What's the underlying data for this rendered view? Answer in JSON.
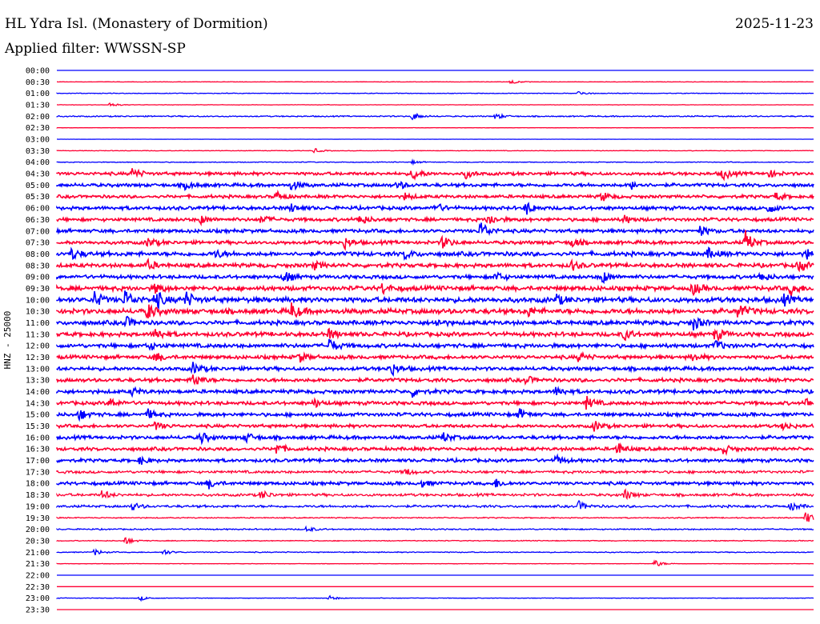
{
  "chart_data": {
    "type": "line",
    "title": "HL Ydra Isl. (Monastery of Dormition)",
    "subtitle": "Applied filter: WWSSN-SP",
    "date": "2025-11-23",
    "ylabel": "HNZ - 25000",
    "colors": {
      "even_row": "#0000ff",
      "odd_row": "#ff0033"
    },
    "rows": [
      "00:00",
      "00:30",
      "01:00",
      "01:30",
      "02:00",
      "02:30",
      "03:00",
      "03:30",
      "04:00",
      "04:30",
      "05:00",
      "05:30",
      "06:00",
      "06:30",
      "07:00",
      "07:30",
      "08:00",
      "08:30",
      "09:00",
      "09:30",
      "10:00",
      "10:30",
      "11:00",
      "11:30",
      "12:00",
      "12:30",
      "13:00",
      "13:30",
      "14:00",
      "14:30",
      "15:00",
      "15:30",
      "16:00",
      "16:30",
      "17:00",
      "17:30",
      "18:00",
      "18:30",
      "19:00",
      "19:30",
      "20:00",
      "20:30",
      "21:00",
      "21:30",
      "22:00",
      "22:30",
      "23:00",
      "23:30"
    ],
    "noise_level": [
      0,
      0.3,
      0.5,
      0.3,
      0.9,
      0.2,
      0.1,
      0.4,
      0.6,
      2.2,
      2.4,
      2.2,
      2.5,
      2.4,
      2.5,
      2.5,
      3.0,
      2.8,
      2.6,
      3.2,
      3.6,
      3.6,
      3.0,
      3.0,
      2.8,
      2.6,
      2.6,
      2.6,
      2.6,
      2.5,
      2.5,
      2.3,
      2.5,
      2.4,
      2.3,
      2.0,
      2.3,
      2.0,
      1.8,
      0.8,
      1.0,
      0.6,
      0.7,
      0.3,
      0,
      0,
      0.4,
      0
    ],
    "events": [
      [],
      [
        [
          0.6,
          3
        ]
      ],
      [
        [
          0.69,
          3
        ]
      ],
      [
        [
          0.07,
          3
        ]
      ],
      [
        [
          0.47,
          5
        ],
        [
          0.58,
          4
        ]
      ],
      [],
      [],
      [
        [
          0.34,
          3
        ]
      ],
      [
        [
          0.47,
          2
        ]
      ],
      [
        [
          0.1,
          7
        ],
        [
          0.47,
          8
        ],
        [
          0.54,
          5
        ],
        [
          0.88,
          7
        ],
        [
          0.94,
          5
        ]
      ],
      [
        [
          0.17,
          5
        ],
        [
          0.31,
          6
        ],
        [
          0.45,
          5
        ],
        [
          0.76,
          5
        ]
      ],
      [
        [
          0.29,
          6
        ],
        [
          0.46,
          4
        ],
        [
          0.72,
          6
        ],
        [
          0.95,
          5
        ]
      ],
      [
        [
          0.31,
          5
        ],
        [
          0.5,
          6
        ],
        [
          0.62,
          8
        ],
        [
          0.94,
          6
        ]
      ],
      [
        [
          0.19,
          5
        ],
        [
          0.27,
          5
        ],
        [
          0.4,
          7
        ],
        [
          0.57,
          8
        ],
        [
          0.75,
          5
        ]
      ],
      [
        [
          0.56,
          12
        ],
        [
          0.85,
          6
        ]
      ],
      [
        [
          0.12,
          6
        ],
        [
          0.38,
          7
        ],
        [
          0.51,
          8
        ],
        [
          0.68,
          6
        ],
        [
          0.91,
          14
        ]
      ],
      [
        [
          0.02,
          7
        ],
        [
          0.21,
          5
        ],
        [
          0.46,
          6
        ],
        [
          0.86,
          6
        ],
        [
          0.99,
          6
        ]
      ],
      [
        [
          0.12,
          6
        ],
        [
          0.34,
          5
        ],
        [
          0.68,
          6
        ],
        [
          0.98,
          7
        ]
      ],
      [
        [
          0.3,
          8
        ],
        [
          0.58,
          6
        ],
        [
          0.72,
          8
        ],
        [
          0.93,
          6
        ]
      ],
      [
        [
          0.13,
          6
        ],
        [
          0.43,
          6
        ],
        [
          0.84,
          8
        ],
        [
          0.97,
          8
        ]
      ],
      [
        [
          0.05,
          10
        ],
        [
          0.09,
          12
        ],
        [
          0.13,
          12
        ],
        [
          0.17,
          10
        ],
        [
          0.66,
          6
        ],
        [
          0.96,
          6
        ]
      ],
      [
        [
          0.12,
          10
        ],
        [
          0.31,
          10
        ],
        [
          0.62,
          7
        ],
        [
          0.9,
          10
        ]
      ],
      [
        [
          0.09,
          8
        ],
        [
          0.5,
          5
        ],
        [
          0.84,
          10
        ]
      ],
      [
        [
          0.13,
          8
        ],
        [
          0.36,
          6
        ],
        [
          0.75,
          7
        ],
        [
          0.87,
          8
        ]
      ],
      [
        [
          0.12,
          6
        ],
        [
          0.36,
          9
        ],
        [
          0.87,
          7
        ]
      ],
      [
        [
          0.13,
          6
        ],
        [
          0.32,
          6
        ],
        [
          0.69,
          6
        ],
        [
          0.84,
          5
        ]
      ],
      [
        [
          0.18,
          7
        ],
        [
          0.44,
          10
        ]
      ],
      [
        [
          0.18,
          9
        ],
        [
          0.62,
          5
        ]
      ],
      [
        [
          0.1,
          5
        ],
        [
          0.47,
          6
        ],
        [
          0.66,
          6
        ]
      ],
      [
        [
          0.07,
          6
        ],
        [
          0.34,
          5
        ],
        [
          0.7,
          8
        ],
        [
          0.99,
          6
        ]
      ],
      [
        [
          0.03,
          7
        ],
        [
          0.12,
          6
        ],
        [
          0.61,
          7
        ]
      ],
      [
        [
          0.13,
          5
        ],
        [
          0.71,
          6
        ],
        [
          0.96,
          5
        ]
      ],
      [
        [
          0.19,
          7
        ],
        [
          0.25,
          6
        ],
        [
          0.51,
          6
        ]
      ],
      [
        [
          0.29,
          7
        ],
        [
          0.74,
          8
        ],
        [
          0.88,
          6
        ]
      ],
      [
        [
          0.11,
          5
        ],
        [
          0.66,
          6
        ]
      ],
      [
        [
          0.46,
          5
        ]
      ],
      [
        [
          0.2,
          6
        ],
        [
          0.48,
          5
        ],
        [
          0.58,
          5
        ]
      ],
      [
        [
          0.06,
          6
        ],
        [
          0.27,
          6
        ],
        [
          0.75,
          7
        ]
      ],
      [
        [
          0.1,
          5
        ],
        [
          0.69,
          6
        ],
        [
          0.97,
          6
        ]
      ],
      [
        [
          0.99,
          8
        ]
      ],
      [
        [
          0.33,
          4
        ]
      ],
      [
        [
          0.09,
          5
        ]
      ],
      [
        [
          0.05,
          4
        ],
        [
          0.14,
          4
        ]
      ],
      [
        [
          0.79,
          5
        ]
      ],
      [],
      [],
      [
        [
          0.11,
          3
        ],
        [
          0.36,
          3
        ]
      ],
      []
    ]
  }
}
